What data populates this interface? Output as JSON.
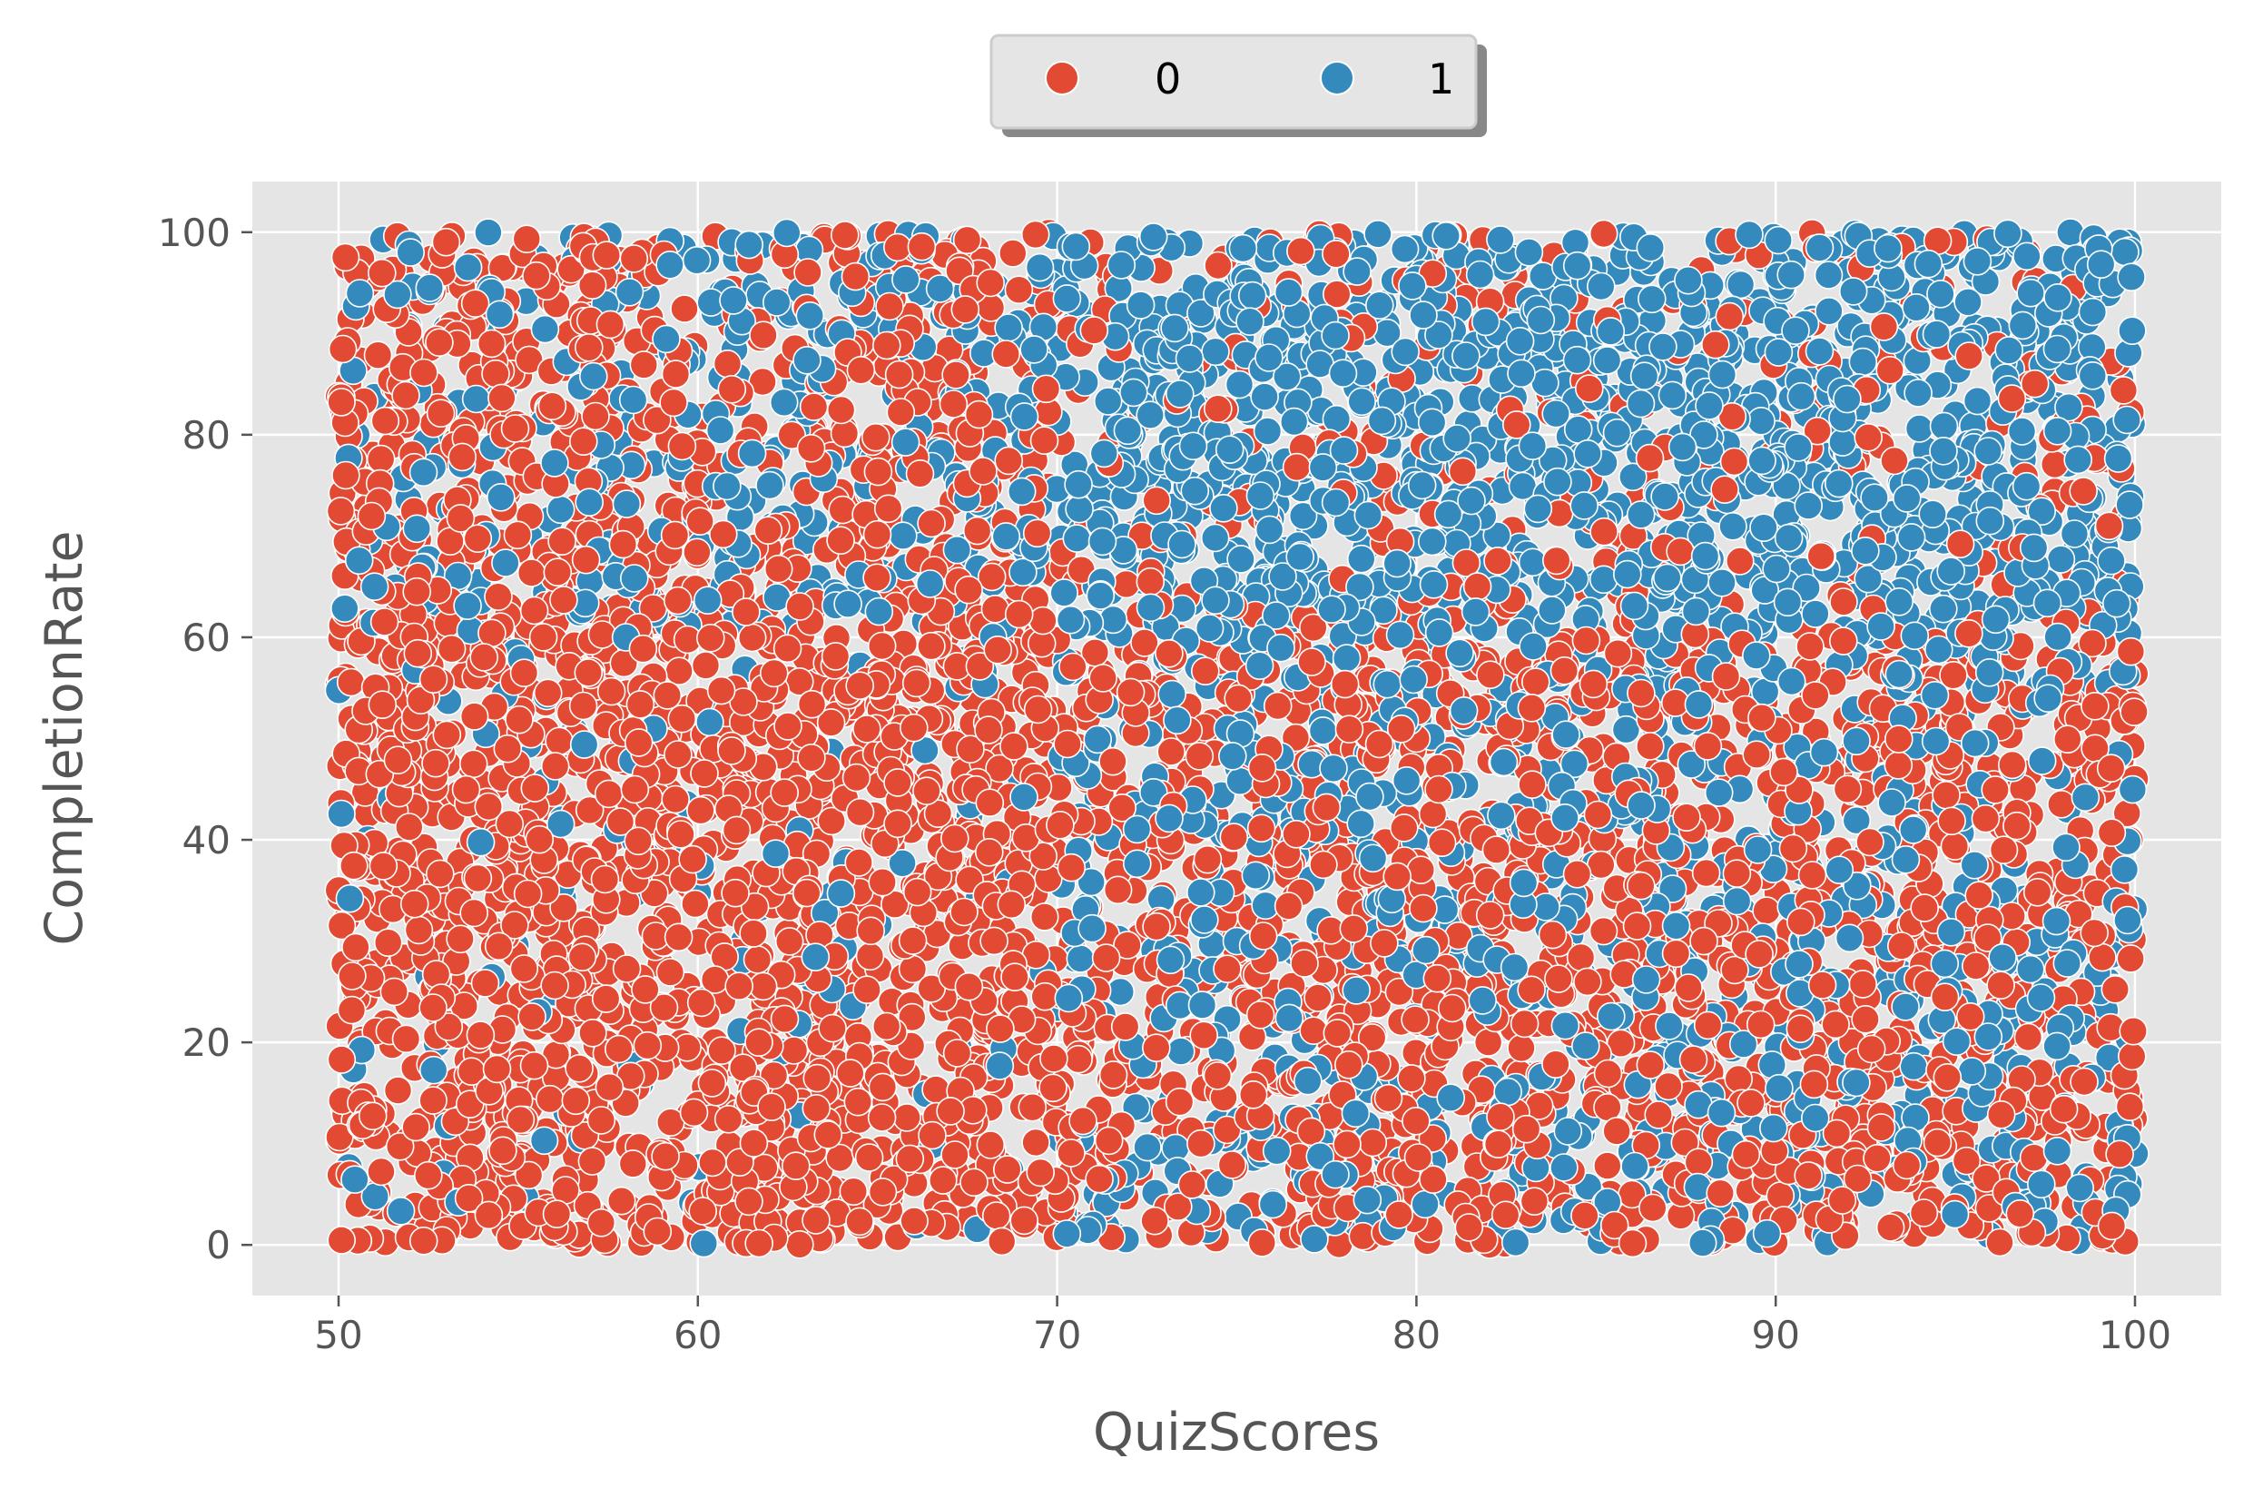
{
  "chart_data": {
    "type": "scatter",
    "title": "",
    "xlabel": "QuizScores",
    "ylabel": "CompletionRate",
    "xlim": [
      47.6,
      102.4
    ],
    "ylim": [
      -5,
      105
    ],
    "x_ticks": [
      50,
      60,
      70,
      80,
      90,
      100
    ],
    "y_ticks": [
      0,
      20,
      40,
      60,
      80,
      100
    ],
    "grid": true,
    "legend": {
      "placement": "top-center, outside plot",
      "entries": [
        "0",
        "1"
      ]
    },
    "style": {
      "background": "#e5e5e5",
      "grid_color": "#ffffff",
      "marker_edge": "#ffffff"
    },
    "series": [
      {
        "name": "0",
        "color": "#e24a33",
        "generator": {
          "n": 3800,
          "points_sample": [
            [
              50.2,
              76
            ],
            [
              50.5,
              96
            ],
            [
              51.4,
              55
            ],
            [
              52,
              36
            ],
            [
              53.1,
              12
            ],
            [
              55,
              88
            ],
            [
              56,
              22
            ],
            [
              57.8,
              48
            ],
            [
              60,
              4
            ],
            [
              61.5,
              33
            ],
            [
              63,
              58
            ],
            [
              64.5,
              17
            ],
            [
              66,
              95
            ],
            [
              67,
              41
            ],
            [
              69,
              70
            ],
            [
              70.5,
              25
            ],
            [
              72,
              53
            ],
            [
              74,
              10
            ],
            [
              75.5,
              45
            ],
            [
              77,
              2
            ],
            [
              79,
              35
            ],
            [
              80,
              50
            ],
            [
              82,
              20
            ],
            [
              84,
              40
            ],
            [
              86,
              5
            ],
            [
              88,
              30
            ],
            [
              90,
              15
            ],
            [
              91,
              88
            ],
            [
              92,
              45
            ],
            [
              94,
              72
            ],
            [
              95,
              10
            ],
            [
              96,
              55
            ],
            [
              97,
              98
            ],
            [
              98.5,
              25
            ],
            [
              99.7,
              72
            ],
            [
              100,
              46
            ]
          ],
          "distribution": "fills x 50-100, y 0-100; dominates all y for x<70 and y<60 for x>70"
        }
      },
      {
        "name": "1",
        "color": "#348abd",
        "generator": {
          "n": 3200,
          "points_sample": [
            [
              50.5,
              80
            ],
            [
              51,
              65
            ],
            [
              52,
              98
            ],
            [
              54,
              70
            ],
            [
              56,
              93
            ],
            [
              58,
              60
            ],
            [
              61,
              8
            ],
            [
              62,
              75
            ],
            [
              64,
              90
            ],
            [
              66,
              82
            ],
            [
              68,
              60
            ],
            [
              70,
              68
            ],
            [
              71,
              2
            ],
            [
              72,
              80
            ],
            [
              74,
              92
            ],
            [
              75,
              30
            ],
            [
              76,
              64
            ],
            [
              78,
              55
            ],
            [
              80,
              75
            ],
            [
              81,
              28
            ],
            [
              83,
              90
            ],
            [
              85,
              65
            ],
            [
              87,
              15
            ],
            [
              88,
              80
            ],
            [
              89,
              45
            ],
            [
              90,
              92
            ],
            [
              91,
              30
            ],
            [
              93,
              60
            ],
            [
              95,
              82
            ],
            [
              96,
              20
            ],
            [
              97,
              70
            ],
            [
              98.5,
              92
            ],
            [
              99.5,
              78
            ],
            [
              100,
              9
            ]
          ],
          "distribution": "mainly x>70 and y>60, scattered elsewhere; sparse for x<70 and y<60"
        }
      }
    ]
  }
}
